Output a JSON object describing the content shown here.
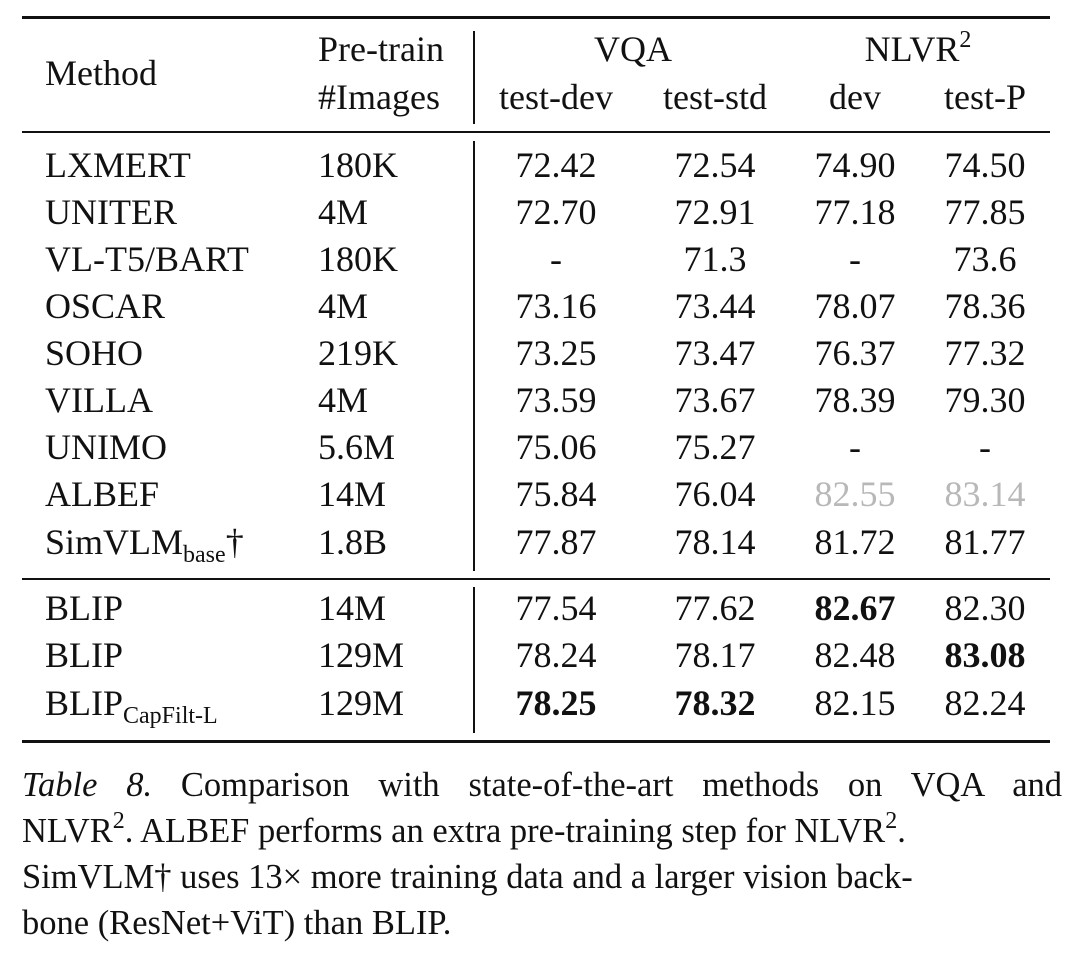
{
  "table": {
    "header": {
      "method": "Method",
      "pretrain_line1": "Pre-train",
      "pretrain_line2": "#Images",
      "group_vqa": "VQA",
      "group_nlvr": "NLVR",
      "group_nlvr_sup": "2",
      "col_testdev": "test-dev",
      "col_teststd": "test-std",
      "col_dev": "dev",
      "col_testp": "test-P"
    },
    "rows": [
      {
        "method": "LXMERT",
        "sub": "",
        "suffix": "",
        "images": "180K",
        "vals": [
          "72.42",
          "72.54",
          "74.90",
          "74.50"
        ],
        "bold": [
          false,
          false,
          false,
          false
        ],
        "faded": [
          false,
          false,
          false,
          false
        ]
      },
      {
        "method": "UNITER",
        "sub": "",
        "suffix": "",
        "images": "4M",
        "vals": [
          "72.70",
          "72.91",
          "77.18",
          "77.85"
        ],
        "bold": [
          false,
          false,
          false,
          false
        ],
        "faded": [
          false,
          false,
          false,
          false
        ]
      },
      {
        "method": "VL-T5/BART",
        "sub": "",
        "suffix": "",
        "images": "180K",
        "vals": [
          "-",
          "71.3",
          "-",
          "73.6"
        ],
        "bold": [
          false,
          false,
          false,
          false
        ],
        "faded": [
          false,
          false,
          false,
          false
        ]
      },
      {
        "method": "OSCAR",
        "sub": "",
        "suffix": "",
        "images": "4M",
        "vals": [
          "73.16",
          "73.44",
          "78.07",
          "78.36"
        ],
        "bold": [
          false,
          false,
          false,
          false
        ],
        "faded": [
          false,
          false,
          false,
          false
        ]
      },
      {
        "method": "SOHO",
        "sub": "",
        "suffix": "",
        "images": "219K",
        "vals": [
          "73.25",
          "73.47",
          "76.37",
          "77.32"
        ],
        "bold": [
          false,
          false,
          false,
          false
        ],
        "faded": [
          false,
          false,
          false,
          false
        ]
      },
      {
        "method": "VILLA",
        "sub": "",
        "suffix": "",
        "images": "4M",
        "vals": [
          "73.59",
          "73.67",
          "78.39",
          "79.30"
        ],
        "bold": [
          false,
          false,
          false,
          false
        ],
        "faded": [
          false,
          false,
          false,
          false
        ]
      },
      {
        "method": "UNIMO",
        "sub": "",
        "suffix": "",
        "images": "5.6M",
        "vals": [
          "75.06",
          "75.27",
          "-",
          "-"
        ],
        "bold": [
          false,
          false,
          false,
          false
        ],
        "faded": [
          false,
          false,
          false,
          false
        ]
      },
      {
        "method": "ALBEF",
        "sub": "",
        "suffix": "",
        "images": "14M",
        "vals": [
          "75.84",
          "76.04",
          "82.55",
          "83.14"
        ],
        "bold": [
          false,
          false,
          false,
          false
        ],
        "faded": [
          false,
          false,
          true,
          true
        ]
      },
      {
        "method": "SimVLM",
        "sub": "base",
        "suffix": "†",
        "images": "1.8B",
        "vals": [
          "77.87",
          "78.14",
          "81.72",
          "81.77"
        ],
        "bold": [
          false,
          false,
          false,
          false
        ],
        "faded": [
          false,
          false,
          false,
          false
        ]
      },
      {
        "method": "BLIP",
        "sub": "",
        "suffix": "",
        "images": "14M",
        "vals": [
          "77.54",
          "77.62",
          "82.67",
          "82.30"
        ],
        "bold": [
          false,
          false,
          true,
          false
        ],
        "faded": [
          false,
          false,
          false,
          false
        ]
      },
      {
        "method": "BLIP",
        "sub": "",
        "suffix": "",
        "images": "129M",
        "vals": [
          "78.24",
          "78.17",
          "82.48",
          "83.08"
        ],
        "bold": [
          false,
          false,
          false,
          true
        ],
        "faded": [
          false,
          false,
          false,
          false
        ]
      },
      {
        "method": "BLIP",
        "sub": "CapFilt-L",
        "suffix": "",
        "images": "129M",
        "vals": [
          "78.25",
          "78.32",
          "82.15",
          "82.24"
        ],
        "bold": [
          true,
          true,
          false,
          false
        ],
        "faded": [
          false,
          false,
          false,
          false
        ]
      }
    ]
  },
  "caption": {
    "label": "Table 8.",
    "line1": "Comparison with state-of-the-art methods on VQA and",
    "line2_a": "NLVR",
    "line2_sup": "2",
    "line2_b": ". ALBEF performs an extra pre-training step for NLVR",
    "line2_sup2": "2",
    "line2_c": ".",
    "line3": "SimVLM† uses 13× more training data and a larger vision back-",
    "line4": "bone (ResNet+ViT) than BLIP."
  }
}
